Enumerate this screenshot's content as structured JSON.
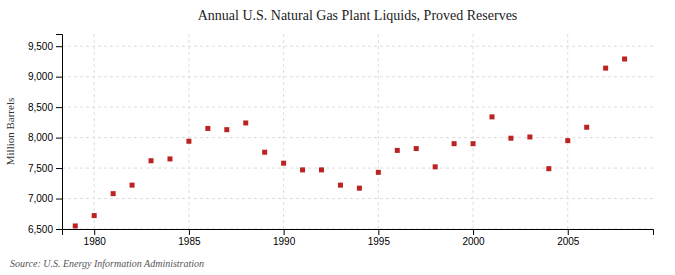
{
  "chart_data": {
    "type": "scatter",
    "title": "Annual U.S. Natural Gas Plant Liquids, Proved Reserves",
    "ylabel": "Million Barrels",
    "annotation": "Source: U.S. Energy Information Administration",
    "x": [
      1979,
      1980,
      1981,
      1982,
      1983,
      1984,
      1985,
      1986,
      1987,
      1988,
      1989,
      1990,
      1991,
      1992,
      1993,
      1994,
      1995,
      1996,
      1997,
      1998,
      1999,
      2000,
      2001,
      2002,
      2003,
      2004,
      2005,
      2006,
      2007,
      2008
    ],
    "values": [
      6550,
      6720,
      7080,
      7220,
      7620,
      7650,
      7940,
      8150,
      8130,
      8240,
      7760,
      7580,
      7470,
      7470,
      7220,
      7170,
      7430,
      7790,
      7820,
      7520,
      7900,
      7900,
      8340,
      7990,
      8010,
      7490,
      7950,
      8170,
      9140,
      9290
    ],
    "color": "#bb2222",
    "marker": "square",
    "xlim": [
      1978.3,
      2009.5
    ],
    "xticks": [
      1980,
      1985,
      1990,
      1995,
      2000,
      2005
    ],
    "ylim": [
      6500,
      9700
    ],
    "yticks": [
      {
        "value": 6500,
        "label": "6,500"
      },
      {
        "value": 7000,
        "label": "7,000"
      },
      {
        "value": 7500,
        "label": "7,500"
      },
      {
        "value": 8000,
        "label": "8,000"
      },
      {
        "value": 8500,
        "label": "8,500"
      },
      {
        "value": 9000,
        "label": "9,000"
      },
      {
        "value": 9500,
        "label": "9,500"
      }
    ],
    "grid": true
  }
}
